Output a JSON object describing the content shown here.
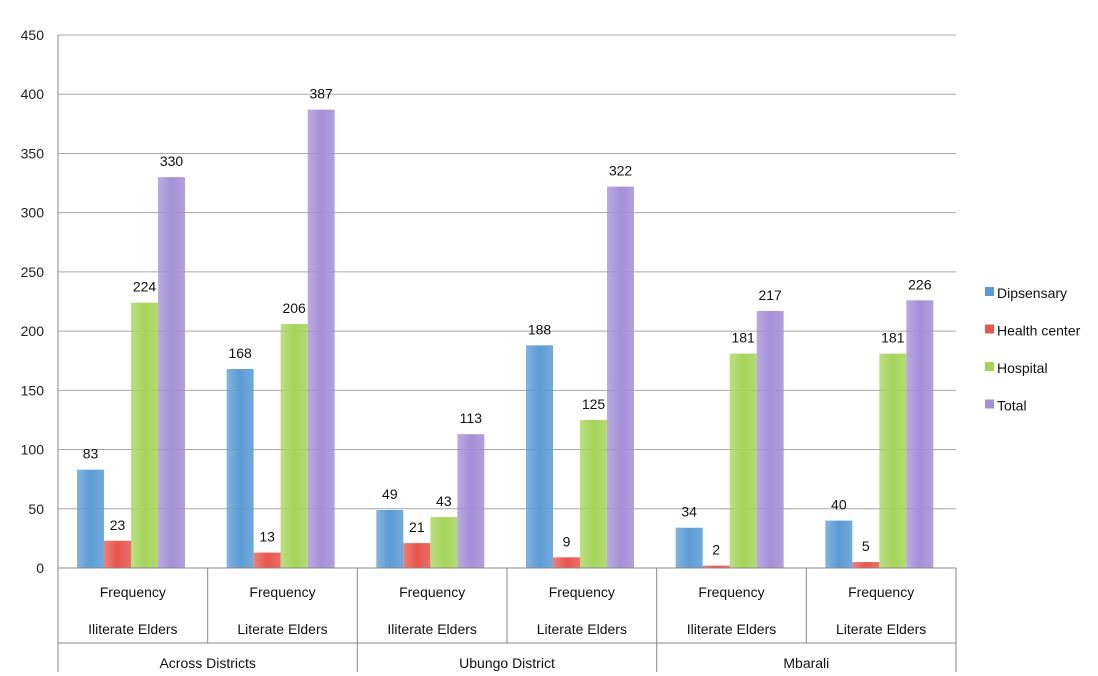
{
  "chart_data": {
    "type": "bar",
    "ylim": [
      0,
      450
    ],
    "yticks": [
      0,
      50,
      100,
      150,
      200,
      250,
      300,
      350,
      400,
      450
    ],
    "grid": true,
    "legend_position": "right",
    "categories": [
      {
        "line1": "Frequency",
        "line2": "Iliterate Elders",
        "group": "Across Districts"
      },
      {
        "line1": "Frequency",
        "line2": "Literate Elders",
        "group": "Across Districts"
      },
      {
        "line1": "Frequency",
        "line2": "Iliterate Elders",
        "group": "Ubungo District"
      },
      {
        "line1": "Frequency",
        "line2": "Literate Elders",
        "group": "Ubungo District"
      },
      {
        "line1": "Frequency",
        "line2": "Iliterate Elders",
        "group": "Mbarali"
      },
      {
        "line1": "Frequency",
        "line2": "Literate Elders",
        "group": "Mbarali"
      }
    ],
    "groups": [
      "Across Districts",
      "Ubungo District",
      "Mbarali"
    ],
    "series": [
      {
        "name": "Dipsensary",
        "color": "#5b9bd5",
        "values": [
          83,
          168,
          49,
          188,
          34,
          40
        ]
      },
      {
        "name": "Health center",
        "color": "#e8554e",
        "values": [
          23,
          13,
          21,
          9,
          2,
          5
        ]
      },
      {
        "name": "Hospital",
        "color": "#a6d45a",
        "values": [
          224,
          206,
          43,
          125,
          181,
          181
        ]
      },
      {
        "name": "Total",
        "color": "#a58fd6",
        "values": [
          330,
          387,
          113,
          322,
          217,
          226
        ]
      }
    ]
  }
}
